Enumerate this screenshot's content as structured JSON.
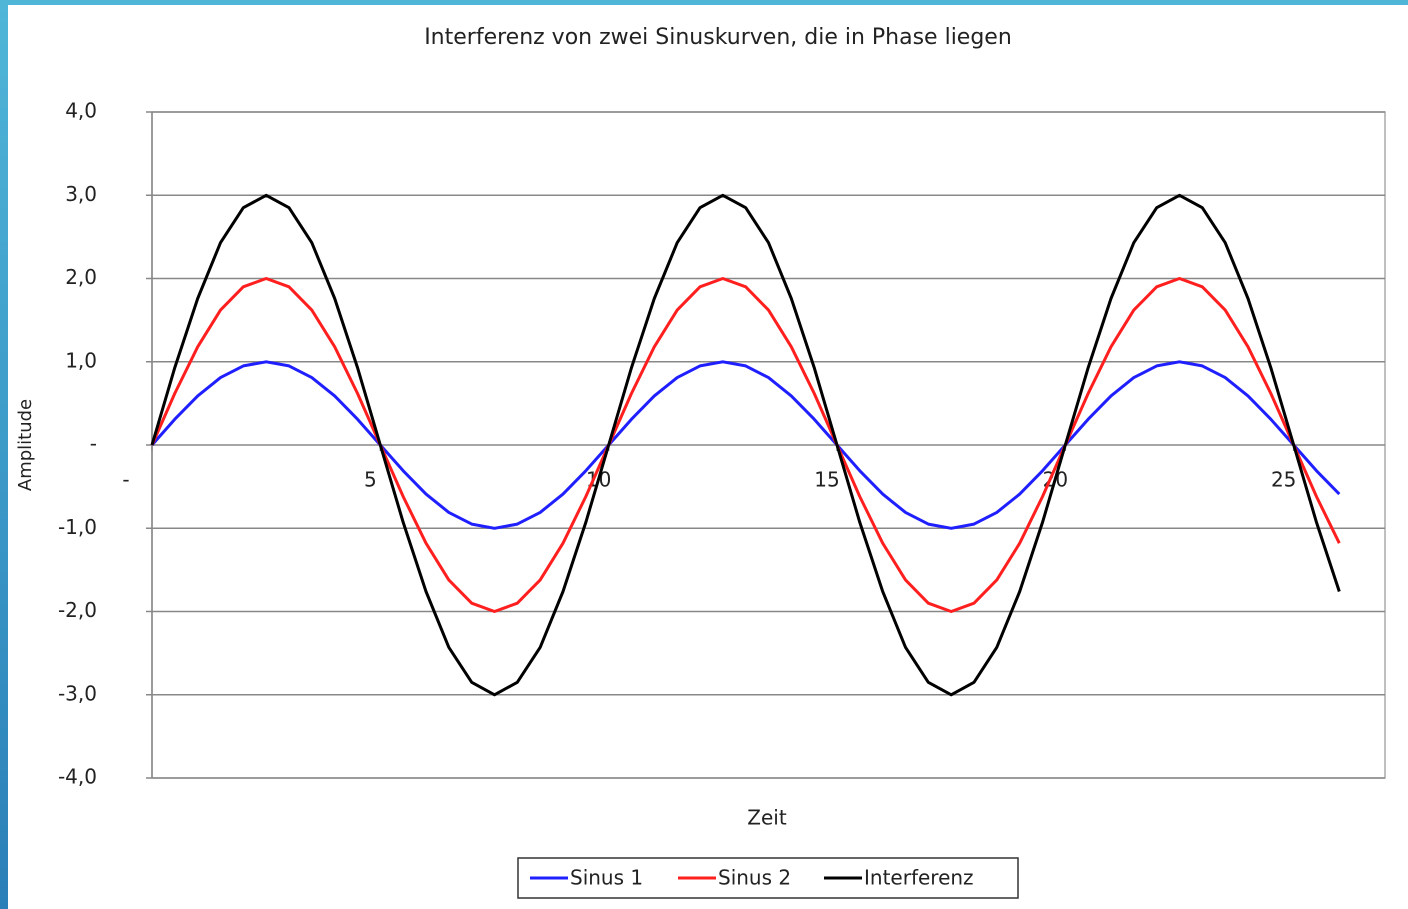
{
  "chart_data": {
    "type": "line",
    "title": "Interferenz von zwei Sinuskurven, die in Phase liegen",
    "x_label": "Zeit",
    "y_label": "Amplitude",
    "x": [
      0,
      0.5,
      1,
      1.5,
      2,
      2.5,
      3,
      3.5,
      4,
      4.5,
      5,
      5.5,
      6,
      6.5,
      7,
      7.5,
      8,
      8.5,
      9,
      9.5,
      10,
      10.5,
      11,
      11.5,
      12,
      12.5,
      13,
      13.5,
      14,
      14.5,
      15,
      15.5,
      16,
      16.5,
      17,
      17.5,
      18,
      18.5,
      19,
      19.5,
      20,
      20.5,
      21,
      21.5,
      22,
      22.5,
      23,
      23.5,
      24,
      24.5,
      25,
      25.5,
      26
    ],
    "series": [
      {
        "name": "Sinus 1",
        "color": "#1f1fff",
        "values": [
          0,
          0.31,
          0.59,
          0.81,
          0.95,
          1,
          0.95,
          0.81,
          0.59,
          0.31,
          0,
          -0.31,
          -0.59,
          -0.81,
          -0.95,
          -1,
          -0.95,
          -0.81,
          -0.59,
          -0.31,
          0,
          0.31,
          0.59,
          0.81,
          0.95,
          1,
          0.95,
          0.81,
          0.59,
          0.31,
          0,
          -0.31,
          -0.59,
          -0.81,
          -0.95,
          -1,
          -0.95,
          -0.81,
          -0.59,
          -0.31,
          0,
          0.31,
          0.59,
          0.81,
          0.95,
          1,
          0.95,
          0.81,
          0.59,
          0.31,
          0,
          -0.31,
          -0.59
        ]
      },
      {
        "name": "Sinus 2",
        "color": "#ff1f1f",
        "values": [
          0,
          0.62,
          1.18,
          1.62,
          1.9,
          2,
          1.9,
          1.62,
          1.18,
          0.62,
          0,
          -0.62,
          -1.18,
          -1.62,
          -1.9,
          -2,
          -1.9,
          -1.62,
          -1.18,
          -0.62,
          0,
          0.62,
          1.18,
          1.62,
          1.9,
          2,
          1.9,
          1.62,
          1.18,
          0.62,
          0,
          -0.62,
          -1.18,
          -1.62,
          -1.9,
          -2,
          -1.9,
          -1.62,
          -1.18,
          -0.62,
          0,
          0.62,
          1.18,
          1.62,
          1.9,
          2,
          1.9,
          1.62,
          1.18,
          0.62,
          0,
          -0.62,
          -1.18
        ]
      },
      {
        "name": "Interferenz",
        "color": "#000000",
        "values": [
          0,
          0.93,
          1.76,
          2.43,
          2.85,
          3,
          2.85,
          2.43,
          1.76,
          0.93,
          0,
          -0.93,
          -1.76,
          -2.43,
          -2.85,
          -3,
          -2.85,
          -2.43,
          -1.76,
          -0.93,
          0,
          0.93,
          1.76,
          2.43,
          2.85,
          3,
          2.85,
          2.43,
          1.76,
          0.93,
          0,
          -0.93,
          -1.76,
          -2.43,
          -2.85,
          -3,
          -2.85,
          -2.43,
          -1.76,
          -0.93,
          0,
          0.93,
          1.76,
          2.43,
          2.85,
          3,
          2.85,
          2.43,
          1.76,
          0.93,
          0,
          -0.93,
          -1.76
        ]
      }
    ],
    "xlim": [
      0,
      27
    ],
    "xticks": [
      {
        "value": 0,
        "label": "-"
      },
      5,
      10,
      15,
      20,
      25
    ],
    "ylim": [
      -4,
      4
    ],
    "yticks": [
      {
        "value": -4,
        "label": "-4,0"
      },
      {
        "value": -3,
        "label": "-3,0"
      },
      {
        "value": -2,
        "label": "-2,0"
      },
      {
        "value": -1,
        "label": "-1,0"
      },
      {
        "value": 0,
        "label": "-"
      },
      {
        "value": 1,
        "label": "1,0"
      },
      {
        "value": 2,
        "label": "2,0"
      },
      {
        "value": 3,
        "label": "3,0"
      },
      {
        "value": 4,
        "label": "4,0"
      }
    ],
    "grid": true,
    "legend": "bottom"
  }
}
